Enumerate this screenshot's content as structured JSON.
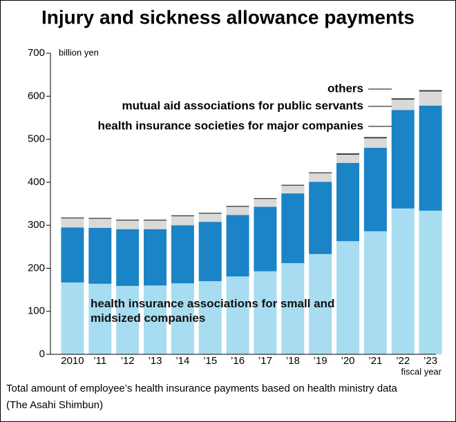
{
  "chart_data": {
    "type": "stacked-bar",
    "title": "Injury and sickness allowance payments",
    "y_unit": "billion yen",
    "x_label": "fiscal year",
    "categories": [
      "2010",
      "’11",
      "’12",
      "’13",
      "’14",
      "’15",
      "’16",
      "’17",
      "’18",
      "’19",
      "’20",
      "’21",
      "’22",
      "’23"
    ],
    "series": [
      {
        "name": "health insurance associations for small and midsized companies",
        "color": "#a8dcf0",
        "values": [
          167,
          164,
          159,
          160,
          165,
          170,
          181,
          193,
          212,
          233,
          263,
          286,
          339,
          334
        ]
      },
      {
        "name": "health insurance societies for major companies",
        "color": "#1a84c7",
        "values": [
          128,
          130,
          132,
          131,
          135,
          138,
          143,
          150,
          162,
          168,
          182,
          194,
          229,
          244
        ]
      },
      {
        "name": "mutual aid associations for public servants",
        "color": "#d9d9d9",
        "values": [
          21,
          21,
          20,
          20,
          21,
          19,
          19,
          18,
          18,
          20,
          19,
          22,
          24,
          33
        ]
      },
      {
        "name": "others",
        "color": "#333333",
        "values": [
          2,
          2,
          2,
          2,
          2,
          2,
          2,
          2,
          2,
          2,
          3,
          3,
          3,
          3
        ]
      }
    ],
    "ylim": [
      0,
      700
    ],
    "yticks": [
      0,
      100,
      200,
      300,
      400,
      500,
      600,
      700
    ],
    "source": "Total amount of employee’s health insurance payments based on health ministry data",
    "credit": "(The Asahi Shimbun)"
  }
}
